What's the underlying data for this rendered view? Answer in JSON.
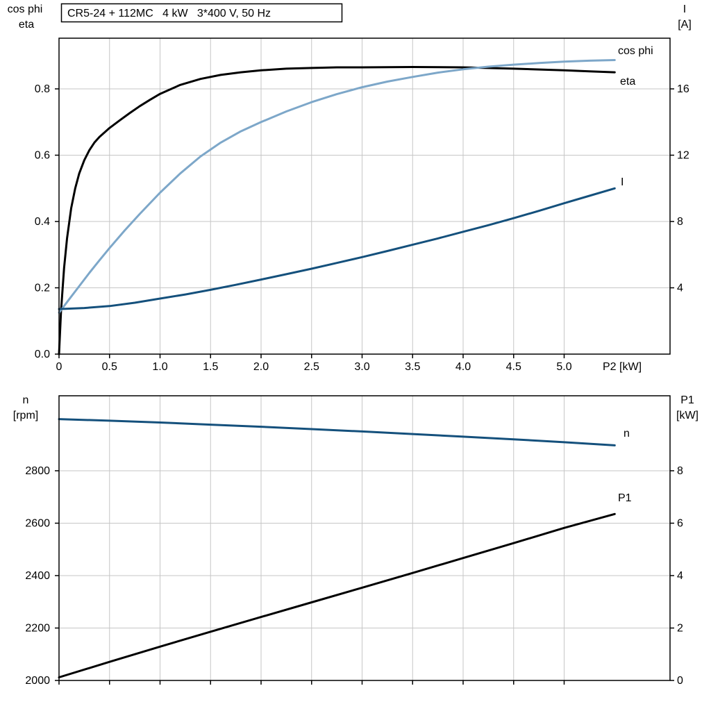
{
  "title": "CR5-24 + 112MC   4 kW   3*400 V, 50 Hz",
  "colors": {
    "black": "#000000",
    "light_blue": "#7da7c9",
    "dark_blue": "#14507c",
    "grid": "#c6c6c6",
    "background": "#ffffff"
  },
  "chart_data": [
    {
      "id": "top",
      "type": "line",
      "title": "CR5-24 + 112MC 4 kW 3*400 V, 50 Hz",
      "grid": true,
      "x_axis": {
        "label": "P2 [kW]",
        "range": [
          0,
          6.05
        ],
        "ticks": [
          0,
          0.5,
          1,
          1.5,
          2,
          2.5,
          3,
          3.5,
          4,
          4.5,
          5
        ],
        "tick_labels": [
          "0",
          "0.5",
          "1.0",
          "1.5",
          "2.0",
          "2.5",
          "3.0",
          "3.5",
          "4.0",
          "4.5",
          "5.0"
        ]
      },
      "left_axis": {
        "label_lines": [
          "cos phi",
          "eta"
        ],
        "range": [
          0,
          0.95
        ],
        "ticks": [
          0,
          0.2,
          0.4,
          0.6,
          0.8
        ],
        "tick_labels": [
          "0.0",
          "0.2",
          "0.4",
          "0.6",
          "0.8"
        ]
      },
      "right_axis": {
        "label_lines": [
          "I",
          "[A]"
        ],
        "range": [
          0,
          19.05
        ],
        "ticks": [
          4,
          8,
          12,
          16
        ],
        "tick_labels": [
          "4",
          "8",
          "12",
          "16"
        ]
      },
      "series": [
        {
          "name": "eta",
          "label": "eta",
          "axis": "left",
          "color": "black",
          "x": [
            0,
            0.02,
            0.05,
            0.08,
            0.12,
            0.16,
            0.2,
            0.25,
            0.3,
            0.35,
            0.4,
            0.5,
            0.6,
            0.7,
            0.8,
            0.9,
            1.0,
            1.2,
            1.4,
            1.6,
            1.8,
            2.0,
            2.25,
            2.5,
            2.75,
            3.0,
            3.5,
            4.0,
            4.5,
            5.0,
            5.25,
            5.5
          ],
          "y": [
            0,
            0.13,
            0.26,
            0.35,
            0.44,
            0.5,
            0.545,
            0.585,
            0.615,
            0.638,
            0.655,
            0.682,
            0.705,
            0.727,
            0.748,
            0.767,
            0.785,
            0.812,
            0.83,
            0.842,
            0.85,
            0.856,
            0.861,
            0.863,
            0.865,
            0.865,
            0.866,
            0.865,
            0.861,
            0.856,
            0.853,
            0.85
          ]
        },
        {
          "name": "cos phi",
          "label": "cos phi",
          "axis": "left",
          "color": "light_blue",
          "x": [
            0,
            0.1,
            0.2,
            0.3,
            0.4,
            0.5,
            0.65,
            0.8,
            1.0,
            1.2,
            1.4,
            1.6,
            1.8,
            2.0,
            2.25,
            2.5,
            2.75,
            3.0,
            3.25,
            3.5,
            3.75,
            4.0,
            4.25,
            4.5,
            4.75,
            5.0,
            5.25,
            5.5
          ],
          "y": [
            0.125,
            0.165,
            0.205,
            0.245,
            0.283,
            0.32,
            0.373,
            0.423,
            0.487,
            0.545,
            0.596,
            0.638,
            0.672,
            0.7,
            0.732,
            0.76,
            0.784,
            0.805,
            0.822,
            0.836,
            0.849,
            0.859,
            0.867,
            0.873,
            0.878,
            0.882,
            0.885,
            0.887
          ]
        },
        {
          "name": "I",
          "label": "I",
          "axis": "right",
          "color": "dark_blue",
          "x": [
            0,
            0.25,
            0.5,
            0.75,
            1.0,
            1.25,
            1.5,
            1.75,
            2.0,
            2.25,
            2.5,
            2.75,
            3.0,
            3.25,
            3.5,
            3.75,
            4.0,
            4.25,
            4.5,
            4.75,
            5.0,
            5.25,
            5.5
          ],
          "y": [
            2.72,
            2.78,
            2.9,
            3.1,
            3.35,
            3.6,
            3.88,
            4.18,
            4.5,
            4.82,
            5.15,
            5.5,
            5.85,
            6.22,
            6.6,
            6.98,
            7.38,
            7.78,
            8.2,
            8.64,
            9.1,
            9.55,
            10.0
          ]
        }
      ]
    },
    {
      "id": "bottom",
      "type": "line",
      "title": "",
      "grid": true,
      "x_axis": {
        "label": "",
        "range": [
          0,
          6.05
        ],
        "ticks": [
          0,
          0.5,
          1,
          1.5,
          2,
          2.5,
          3,
          3.5,
          4,
          4.5,
          5
        ],
        "tick_labels": []
      },
      "left_axis": {
        "label_lines": [
          "n",
          "[rpm]"
        ],
        "range": [
          2000,
          3085
        ],
        "ticks": [
          2000,
          2200,
          2400,
          2600,
          2800
        ],
        "tick_labels": [
          "2000",
          "2200",
          "2400",
          "2600",
          "2800"
        ]
      },
      "right_axis": {
        "label_lines": [
          "P1",
          "[kW]"
        ],
        "range": [
          0,
          10.85
        ],
        "ticks": [
          0,
          2,
          4,
          6,
          8
        ],
        "tick_labels": [
          "0",
          "2",
          "4",
          "6",
          "8"
        ]
      },
      "series": [
        {
          "name": "n",
          "label": "n",
          "axis": "left",
          "color": "dark_blue",
          "x": [
            0,
            0.5,
            1,
            1.5,
            2,
            2.5,
            3,
            3.5,
            4,
            4.5,
            5,
            5.5
          ],
          "y": [
            2997,
            2991,
            2984,
            2976,
            2968,
            2959,
            2950,
            2940,
            2930,
            2920,
            2909,
            2897
          ]
        },
        {
          "name": "P1",
          "label": "P1",
          "axis": "right",
          "color": "black",
          "x": [
            0,
            0.5,
            1,
            1.5,
            2,
            2.5,
            3,
            3.5,
            4,
            4.5,
            5,
            5.5
          ],
          "y": [
            0.12,
            0.71,
            1.29,
            1.86,
            2.42,
            2.98,
            3.54,
            4.1,
            4.67,
            5.24,
            5.82,
            6.35
          ]
        }
      ]
    }
  ]
}
